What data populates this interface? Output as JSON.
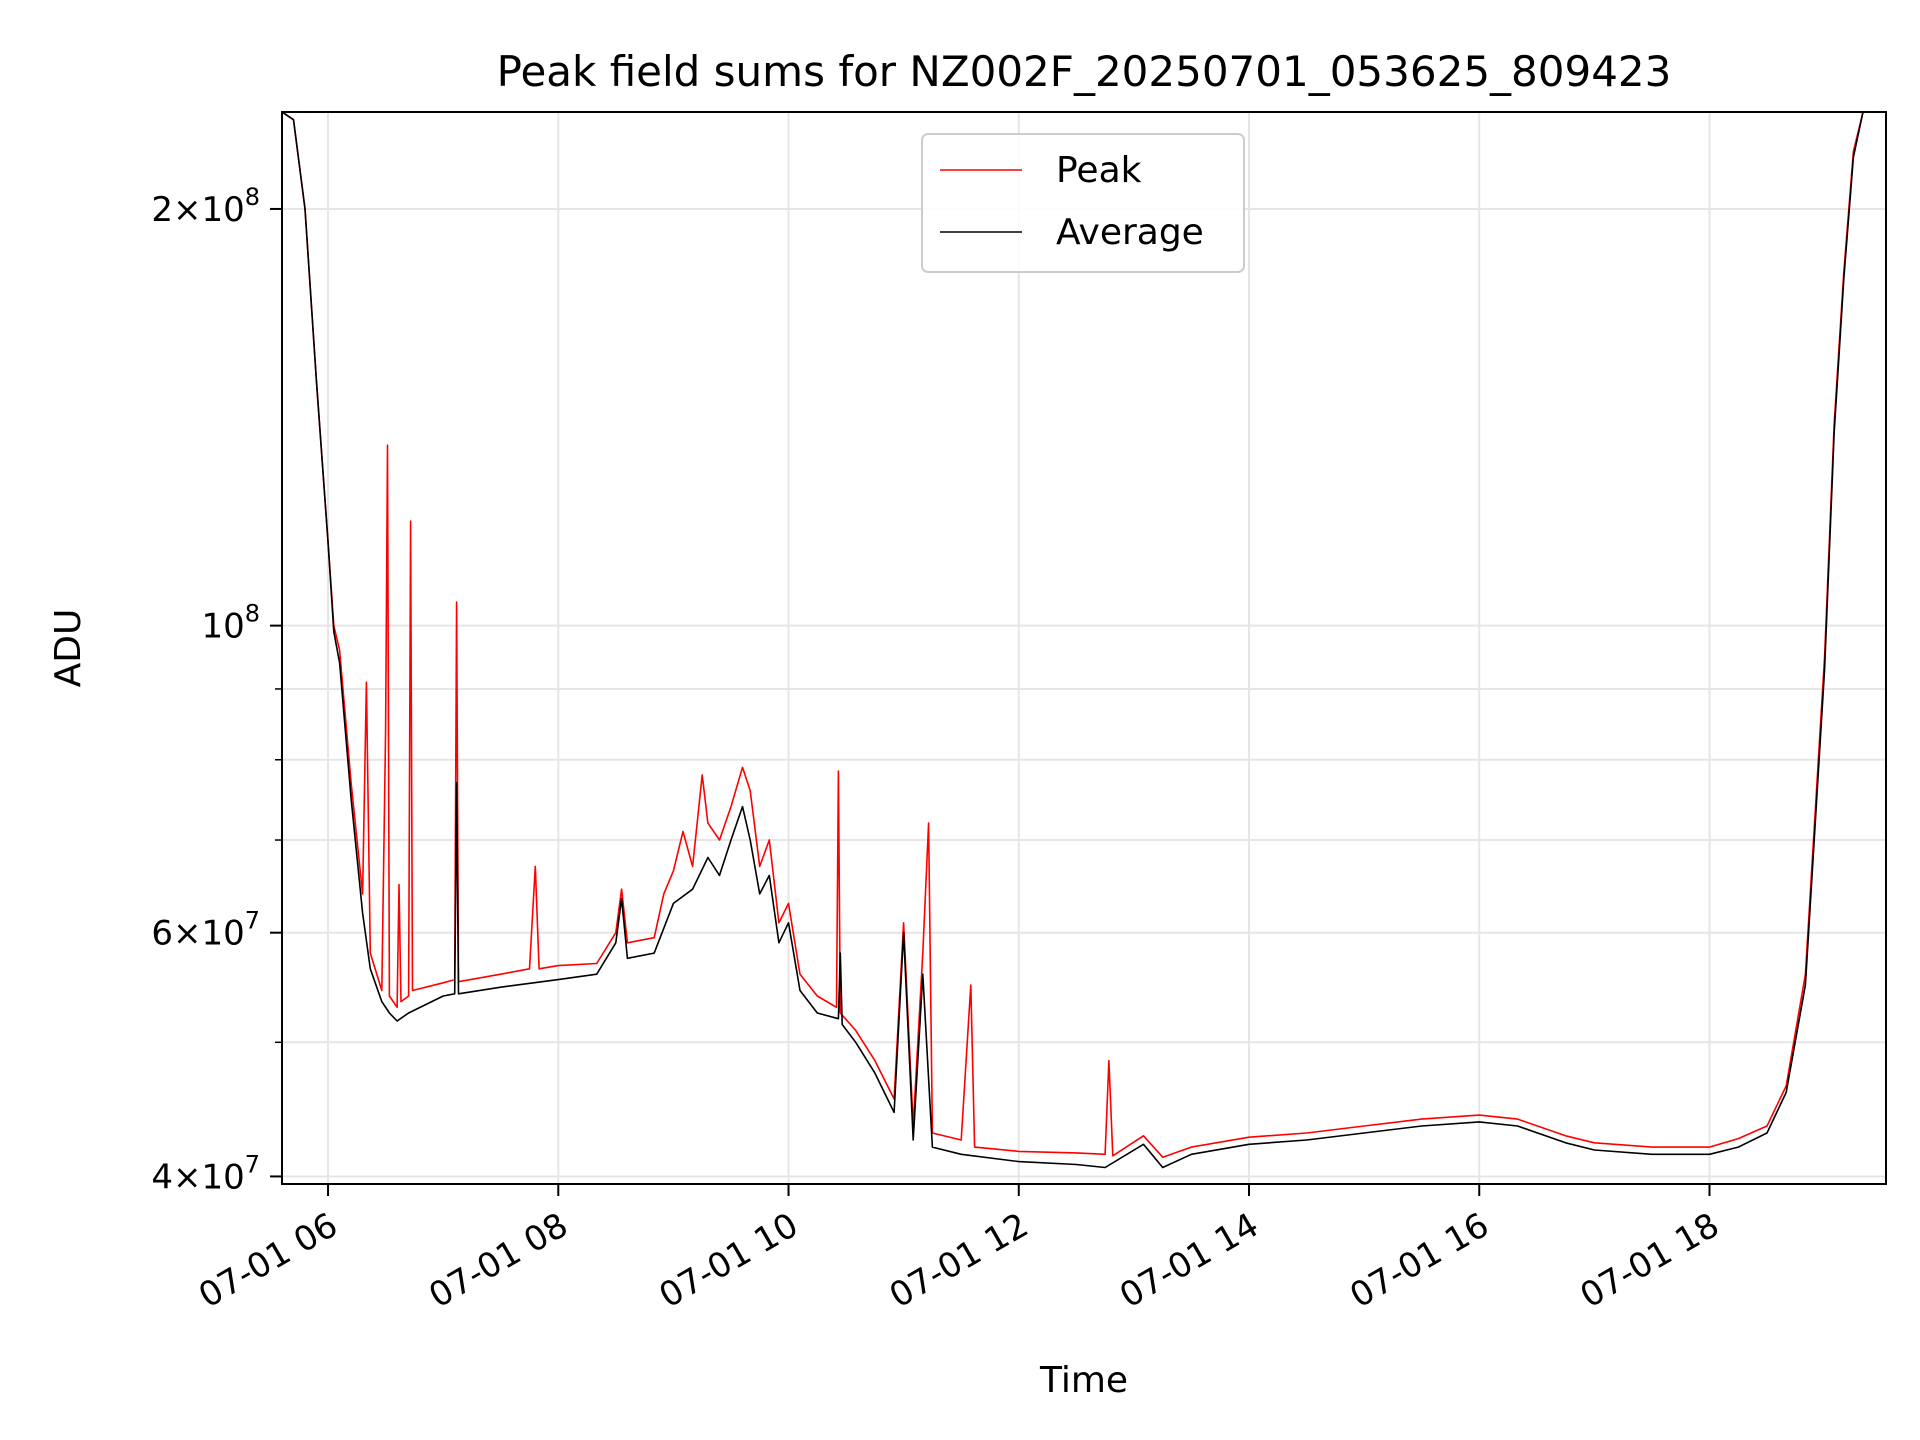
{
  "chart_data": {
    "type": "line",
    "title": "Peak field sums for NZ002F_20250701_053625_809423",
    "xlabel": "Time",
    "ylabel": "ADU",
    "yscale": "log",
    "grid": true,
    "legend_placement": "top-center",
    "xlim": [
      "2025-07-01 05:36",
      "2025-07-01 19:32"
    ],
    "ylim": [
      39500000,
      235000000
    ],
    "x_ticks": [
      {
        "t": "2025-07-01 06:00",
        "label": "07-01 06"
      },
      {
        "t": "2025-07-01 08:00",
        "label": "07-01 08"
      },
      {
        "t": "2025-07-01 10:00",
        "label": "07-01 10"
      },
      {
        "t": "2025-07-01 12:00",
        "label": "07-01 12"
      },
      {
        "t": "2025-07-01 14:00",
        "label": "07-01 14"
      },
      {
        "t": "2025-07-01 16:00",
        "label": "07-01 16"
      },
      {
        "t": "2025-07-01 18:00",
        "label": "07-01 18"
      }
    ],
    "y_major_ticks": [
      {
        "value": 40000000,
        "base": "4",
        "exp": "7"
      },
      {
        "value": 60000000,
        "base": "6",
        "exp": "7"
      },
      {
        "value": 100000000,
        "base": "",
        "exp": "8"
      },
      {
        "value": 200000000,
        "base": "2",
        "exp": "8"
      }
    ],
    "y_minor_ticks": [
      50000000,
      70000000,
      80000000,
      90000000
    ],
    "series": [
      {
        "name": "Peak",
        "color": "#ff0000",
        "points": [
          [
            "2025-07-01 05:36",
            235000000
          ],
          [
            "2025-07-01 05:42",
            232000000
          ],
          [
            "2025-07-01 05:48",
            200000000
          ],
          [
            "2025-07-01 05:54",
            150000000
          ],
          [
            "2025-07-01 06:00",
            115000000
          ],
          [
            "2025-07-01 06:03",
            100000000
          ],
          [
            "2025-07-01 06:06",
            96000000
          ],
          [
            "2025-07-01 06:12",
            77000000
          ],
          [
            "2025-07-01 06:18",
            64000000
          ],
          [
            "2025-07-01 06:20",
            91000000
          ],
          [
            "2025-07-01 06:22",
            58000000
          ],
          [
            "2025-07-01 06:28",
            54500000
          ],
          [
            "2025-07-01 06:30",
            84000000
          ],
          [
            "2025-07-01 06:31",
            135000000
          ],
          [
            "2025-07-01 06:32",
            54000000
          ],
          [
            "2025-07-01 06:36",
            53000000
          ],
          [
            "2025-07-01 06:37",
            65000000
          ],
          [
            "2025-07-01 06:38",
            53500000
          ],
          [
            "2025-07-01 06:42",
            54000000
          ],
          [
            "2025-07-01 06:43",
            119000000
          ],
          [
            "2025-07-01 06:44",
            54500000
          ],
          [
            "2025-07-01 07:00",
            55200000
          ],
          [
            "2025-07-01 07:06",
            55500000
          ],
          [
            "2025-07-01 07:07",
            104000000
          ],
          [
            "2025-07-01 07:08",
            55300000
          ],
          [
            "2025-07-01 07:30",
            56000000
          ],
          [
            "2025-07-01 07:45",
            56500000
          ],
          [
            "2025-07-01 07:48",
            67000000
          ],
          [
            "2025-07-01 07:50",
            56500000
          ],
          [
            "2025-07-01 08:00",
            56800000
          ],
          [
            "2025-07-01 08:20",
            57000000
          ],
          [
            "2025-07-01 08:30",
            60000000
          ],
          [
            "2025-07-01 08:33",
            64500000
          ],
          [
            "2025-07-01 08:36",
            59000000
          ],
          [
            "2025-07-01 08:50",
            59500000
          ],
          [
            "2025-07-01 08:55",
            64000000
          ],
          [
            "2025-07-01 09:00",
            66500000
          ],
          [
            "2025-07-01 09:05",
            71000000
          ],
          [
            "2025-07-01 09:10",
            67000000
          ],
          [
            "2025-07-01 09:15",
            78000000
          ],
          [
            "2025-07-01 09:18",
            72000000
          ],
          [
            "2025-07-01 09:24",
            70000000
          ],
          [
            "2025-07-01 09:30",
            74000000
          ],
          [
            "2025-07-01 09:36",
            79000000
          ],
          [
            "2025-07-01 09:40",
            76000000
          ],
          [
            "2025-07-01 09:45",
            67000000
          ],
          [
            "2025-07-01 09:50",
            70000000
          ],
          [
            "2025-07-01 09:55",
            61000000
          ],
          [
            "2025-07-01 10:00",
            63000000
          ],
          [
            "2025-07-01 10:06",
            56000000
          ],
          [
            "2025-07-01 10:15",
            54000000
          ],
          [
            "2025-07-01 10:25",
            53000000
          ],
          [
            "2025-07-01 10:26",
            78500000
          ],
          [
            "2025-07-01 10:27",
            52500000
          ],
          [
            "2025-07-01 10:35",
            51000000
          ],
          [
            "2025-07-01 10:45",
            48500000
          ],
          [
            "2025-07-01 10:55",
            45500000
          ],
          [
            "2025-07-01 11:00",
            61000000
          ],
          [
            "2025-07-01 11:05",
            43500000
          ],
          [
            "2025-07-01 11:10",
            58000000
          ],
          [
            "2025-07-01 11:13",
            72000000
          ],
          [
            "2025-07-01 11:15",
            43000000
          ],
          [
            "2025-07-01 11:30",
            42500000
          ],
          [
            "2025-07-01 11:35",
            55000000
          ],
          [
            "2025-07-01 11:37",
            42000000
          ],
          [
            "2025-07-01 12:00",
            41700000
          ],
          [
            "2025-07-01 12:30",
            41600000
          ],
          [
            "2025-07-01 12:45",
            41500000
          ],
          [
            "2025-07-01 12:47",
            48500000
          ],
          [
            "2025-07-01 12:49",
            41400000
          ],
          [
            "2025-07-01 13:05",
            42800000
          ],
          [
            "2025-07-01 13:15",
            41300000
          ],
          [
            "2025-07-01 13:30",
            42000000
          ],
          [
            "2025-07-01 14:00",
            42700000
          ],
          [
            "2025-07-01 14:30",
            43000000
          ],
          [
            "2025-07-01 15:00",
            43500000
          ],
          [
            "2025-07-01 15:30",
            44000000
          ],
          [
            "2025-07-01 16:00",
            44300000
          ],
          [
            "2025-07-01 16:20",
            44000000
          ],
          [
            "2025-07-01 16:45",
            42800000
          ],
          [
            "2025-07-01 17:00",
            42300000
          ],
          [
            "2025-07-01 17:30",
            42000000
          ],
          [
            "2025-07-01 18:00",
            42000000
          ],
          [
            "2025-07-01 18:15",
            42600000
          ],
          [
            "2025-07-01 18:30",
            43500000
          ],
          [
            "2025-07-01 18:40",
            46500000
          ],
          [
            "2025-07-01 18:50",
            56000000
          ],
          [
            "2025-07-01 19:00",
            95000000
          ],
          [
            "2025-07-01 19:05",
            140000000
          ],
          [
            "2025-07-01 19:10",
            180000000
          ],
          [
            "2025-07-01 19:15",
            220000000
          ],
          [
            "2025-07-01 19:20",
            235000000
          ],
          [
            "2025-07-01 19:32",
            235000000
          ]
        ]
      },
      {
        "name": "Average",
        "color": "#000000",
        "points": [
          [
            "2025-07-01 05:36",
            235000000
          ],
          [
            "2025-07-01 05:42",
            232000000
          ],
          [
            "2025-07-01 05:48",
            200000000
          ],
          [
            "2025-07-01 05:54",
            150000000
          ],
          [
            "2025-07-01 06:00",
            115000000
          ],
          [
            "2025-07-01 06:03",
            99000000
          ],
          [
            "2025-07-01 06:06",
            94000000
          ],
          [
            "2025-07-01 06:12",
            75000000
          ],
          [
            "2025-07-01 06:18",
            62000000
          ],
          [
            "2025-07-01 06:22",
            56500000
          ],
          [
            "2025-07-01 06:28",
            53500000
          ],
          [
            "2025-07-01 06:32",
            52500000
          ],
          [
            "2025-07-01 06:36",
            51800000
          ],
          [
            "2025-07-01 06:42",
            52500000
          ],
          [
            "2025-07-01 07:00",
            54000000
          ],
          [
            "2025-07-01 07:06",
            54200000
          ],
          [
            "2025-07-01 07:07",
            77000000
          ],
          [
            "2025-07-01 07:08",
            54200000
          ],
          [
            "2025-07-01 07:30",
            54800000
          ],
          [
            "2025-07-01 08:00",
            55500000
          ],
          [
            "2025-07-01 08:20",
            56000000
          ],
          [
            "2025-07-01 08:30",
            59000000
          ],
          [
            "2025-07-01 08:33",
            63500000
          ],
          [
            "2025-07-01 08:36",
            57500000
          ],
          [
            "2025-07-01 08:50",
            58000000
          ],
          [
            "2025-07-01 09:00",
            63000000
          ],
          [
            "2025-07-01 09:10",
            64500000
          ],
          [
            "2025-07-01 09:18",
            68000000
          ],
          [
            "2025-07-01 09:24",
            66000000
          ],
          [
            "2025-07-01 09:30",
            70000000
          ],
          [
            "2025-07-01 09:36",
            74000000
          ],
          [
            "2025-07-01 09:40",
            70000000
          ],
          [
            "2025-07-01 09:45",
            64000000
          ],
          [
            "2025-07-01 09:50",
            66000000
          ],
          [
            "2025-07-01 09:55",
            59000000
          ],
          [
            "2025-07-01 10:00",
            61000000
          ],
          [
            "2025-07-01 10:06",
            54500000
          ],
          [
            "2025-07-01 10:15",
            52500000
          ],
          [
            "2025-07-01 10:26",
            52000000
          ],
          [
            "2025-07-01 10:27",
            58000000
          ],
          [
            "2025-07-01 10:28",
            51500000
          ],
          [
            "2025-07-01 10:35",
            50000000
          ],
          [
            "2025-07-01 10:45",
            47500000
          ],
          [
            "2025-07-01 10:55",
            44500000
          ],
          [
            "2025-07-01 11:00",
            60000000
          ],
          [
            "2025-07-01 11:05",
            42500000
          ],
          [
            "2025-07-01 11:10",
            56000000
          ],
          [
            "2025-07-01 11:15",
            42000000
          ],
          [
            "2025-07-01 11:30",
            41500000
          ],
          [
            "2025-07-01 12:00",
            41000000
          ],
          [
            "2025-07-01 12:30",
            40800000
          ],
          [
            "2025-07-01 12:45",
            40600000
          ],
          [
            "2025-07-01 13:05",
            42200000
          ],
          [
            "2025-07-01 13:15",
            40600000
          ],
          [
            "2025-07-01 13:30",
            41500000
          ],
          [
            "2025-07-01 14:00",
            42200000
          ],
          [
            "2025-07-01 14:30",
            42500000
          ],
          [
            "2025-07-01 15:00",
            43000000
          ],
          [
            "2025-07-01 15:30",
            43500000
          ],
          [
            "2025-07-01 16:00",
            43800000
          ],
          [
            "2025-07-01 16:20",
            43500000
          ],
          [
            "2025-07-01 16:45",
            42300000
          ],
          [
            "2025-07-01 17:00",
            41800000
          ],
          [
            "2025-07-01 17:30",
            41500000
          ],
          [
            "2025-07-01 18:00",
            41500000
          ],
          [
            "2025-07-01 18:15",
            42000000
          ],
          [
            "2025-07-01 18:30",
            43000000
          ],
          [
            "2025-07-01 18:40",
            46000000
          ],
          [
            "2025-07-01 18:50",
            55000000
          ],
          [
            "2025-07-01 19:00",
            93000000
          ],
          [
            "2025-07-01 19:05",
            138000000
          ],
          [
            "2025-07-01 19:10",
            178000000
          ],
          [
            "2025-07-01 19:15",
            218000000
          ],
          [
            "2025-07-01 19:20",
            235000000
          ],
          [
            "2025-07-01 19:32",
            235000000
          ]
        ]
      }
    ]
  }
}
